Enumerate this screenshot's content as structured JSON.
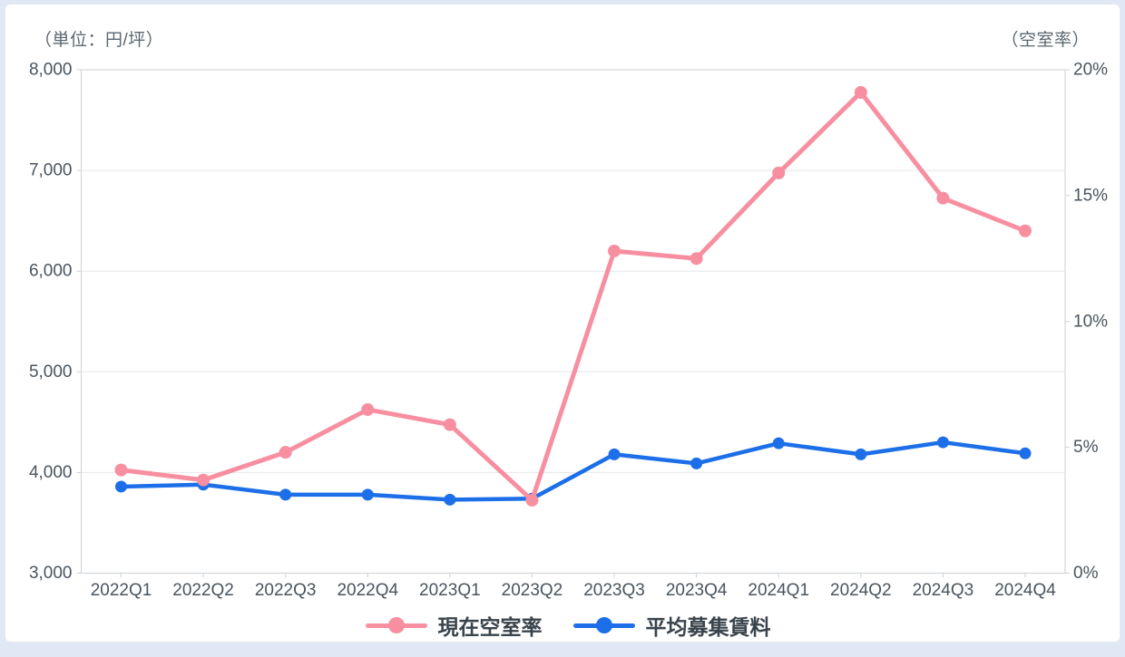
{
  "header": {
    "left_axis_unit": "（単位：円/坪）",
    "right_axis_unit": "（空室率）"
  },
  "chart_data": {
    "type": "line",
    "categories": [
      "2022Q1",
      "2022Q2",
      "2022Q3",
      "2022Q4",
      "2023Q1",
      "2023Q2",
      "2023Q3",
      "2023Q4",
      "2024Q1",
      "2024Q2",
      "2024Q3",
      "2024Q4"
    ],
    "series": [
      {
        "name": "現在空室率",
        "axis": "right",
        "unit": "%",
        "color": "#f78fa1",
        "values": [
          4.1,
          3.7,
          4.8,
          6.5,
          5.9,
          2.9,
          12.8,
          12.5,
          15.9,
          19.1,
          14.9,
          13.6
        ]
      },
      {
        "name": "平均募集賃料",
        "axis": "left",
        "unit": "円/坪",
        "color": "#1c6fe8",
        "values": [
          3860,
          3880,
          3780,
          3780,
          3730,
          3740,
          4180,
          4090,
          4290,
          4180,
          4300,
          4190
        ]
      }
    ],
    "left_axis": {
      "min": 3000,
      "max": 8000,
      "tick_step": 1000,
      "tick_labels": [
        "8,000",
        "7,000",
        "6,000",
        "5,000",
        "4,000",
        "3,000"
      ]
    },
    "right_axis": {
      "min": 0,
      "max": 20,
      "tick_step": 5,
      "tick_labels": [
        "20%",
        "15%",
        "10%",
        "5%",
        "0%"
      ]
    },
    "grid": "horizontal",
    "legend_position": "bottom",
    "title": ""
  },
  "legend": {
    "items": [
      {
        "label": "現在空室率",
        "color": "#f78fa1"
      },
      {
        "label": "平均募集賃料",
        "color": "#1c6fe8"
      }
    ]
  }
}
